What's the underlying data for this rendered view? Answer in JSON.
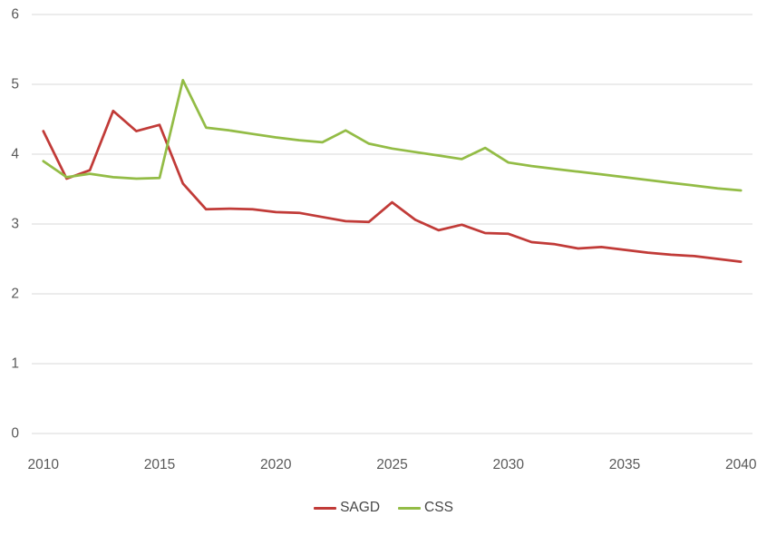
{
  "chart_data": {
    "type": "line",
    "title": "",
    "xlabel": "",
    "ylabel": "",
    "x": [
      2010,
      2011,
      2012,
      2013,
      2014,
      2015,
      2016,
      2017,
      2018,
      2019,
      2020,
      2021,
      2022,
      2023,
      2024,
      2025,
      2026,
      2027,
      2028,
      2029,
      2030,
      2031,
      2032,
      2033,
      2034,
      2035,
      2036,
      2037,
      2038,
      2039,
      2040
    ],
    "series": [
      {
        "name": "SAGD",
        "color": "#c13b38",
        "values": [
          4.33,
          3.65,
          3.77,
          4.62,
          4.33,
          4.42,
          3.58,
          3.21,
          3.22,
          3.21,
          3.17,
          3.16,
          3.1,
          3.04,
          3.03,
          3.31,
          3.06,
          2.91,
          2.99,
          2.87,
          2.86,
          2.74,
          2.71,
          2.65,
          2.67,
          2.63,
          2.59,
          2.56,
          2.54,
          2.5,
          2.46
        ]
      },
      {
        "name": "CSS",
        "color": "#93bc46",
        "values": [
          3.9,
          3.67,
          3.72,
          3.67,
          3.65,
          3.66,
          5.06,
          4.38,
          4.34,
          4.29,
          4.24,
          4.2,
          4.17,
          4.34,
          4.15,
          4.08,
          4.03,
          3.98,
          3.93,
          4.09,
          3.88,
          3.83,
          3.79,
          3.75,
          3.71,
          3.67,
          3.63,
          3.59,
          3.55,
          3.51,
          3.48
        ]
      }
    ],
    "ylim": [
      0,
      6
    ],
    "yticks": [
      0,
      1,
      2,
      3,
      4,
      5,
      6
    ],
    "xticks": [
      2010,
      2015,
      2020,
      2025,
      2030,
      2035,
      2040
    ],
    "grid": "horizontal",
    "grid_color": "#d9d9d9",
    "axis_text_color": "#595959",
    "legend_position": "bottom-center",
    "legend_text_color": "#474747"
  }
}
